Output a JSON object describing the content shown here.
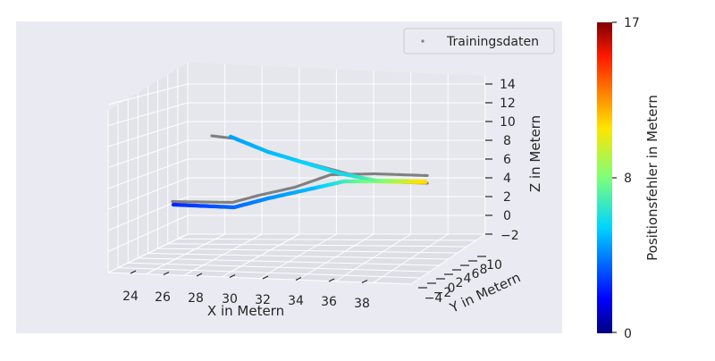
{
  "chart_data": {
    "type": "scatter",
    "projection": "3d",
    "legend": {
      "label": "Trainingsdaten",
      "placement": "top-right"
    },
    "axes": {
      "x": {
        "label": "X in Metern",
        "ticks": [
          "24",
          "26",
          "28",
          "30",
          "32",
          "34",
          "36",
          "38"
        ]
      },
      "y": {
        "label": "Y in Metern",
        "ticks": [
          "−4",
          "−2",
          "0",
          "2",
          "4",
          "6",
          "8",
          "10"
        ]
      },
      "z": {
        "label": "Z in Metern",
        "ticks": [
          "−2",
          "0",
          "2",
          "4",
          "6",
          "8",
          "10",
          "12",
          "14"
        ]
      }
    },
    "colorbar": {
      "label": "Positionsfehler in Metern",
      "ticks": [
        "0",
        "8",
        "17"
      ],
      "range": [
        0,
        17
      ],
      "colormap": "jet"
    },
    "colors": {
      "pane": "#eaeaf2",
      "training": "#808080"
    }
  }
}
